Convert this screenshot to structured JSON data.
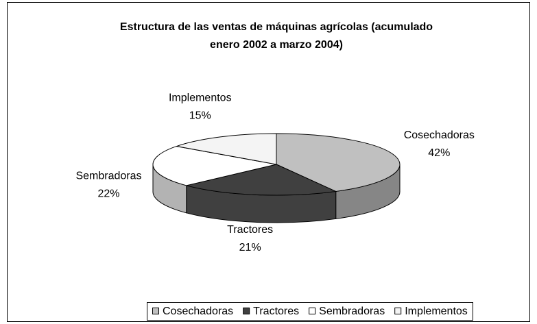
{
  "chart_data": {
    "type": "pie3d",
    "title": [
      "Estructura de las ventas de máquinas agrícolas (acumulado",
      "enero 2002 a marzo 2004)"
    ],
    "categories": [
      "Cosechadoras",
      "Tractores",
      "Sembradoras",
      "Implementos"
    ],
    "values": [
      42,
      21,
      22,
      15
    ],
    "value_labels": [
      "42%",
      "21%",
      "22%",
      "15%"
    ],
    "colors": [
      "#c0c0c0",
      "#404040",
      "#ffffff",
      "#f4f4f4"
    ],
    "legend": "bottom"
  }
}
